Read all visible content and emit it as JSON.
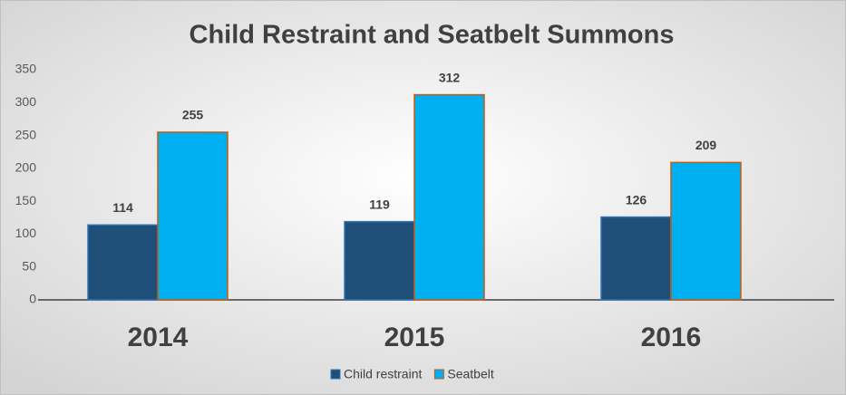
{
  "chart_data": {
    "type": "bar",
    "title": "Child Restraint and Seatbelt Summons",
    "categories": [
      "2014",
      "2015",
      "2016"
    ],
    "series": [
      {
        "name": "Child restraint",
        "color": "#1f4e79",
        "values": [
          114,
          119,
          126
        ]
      },
      {
        "name": "Seatbelt",
        "color": "#00b0f0",
        "values": [
          255,
          312,
          209
        ]
      }
    ],
    "ylim": [
      0,
      350
    ],
    "yticks": [
      0,
      50,
      100,
      150,
      200,
      250,
      300,
      350
    ],
    "grid": false,
    "legend": "bottom"
  }
}
